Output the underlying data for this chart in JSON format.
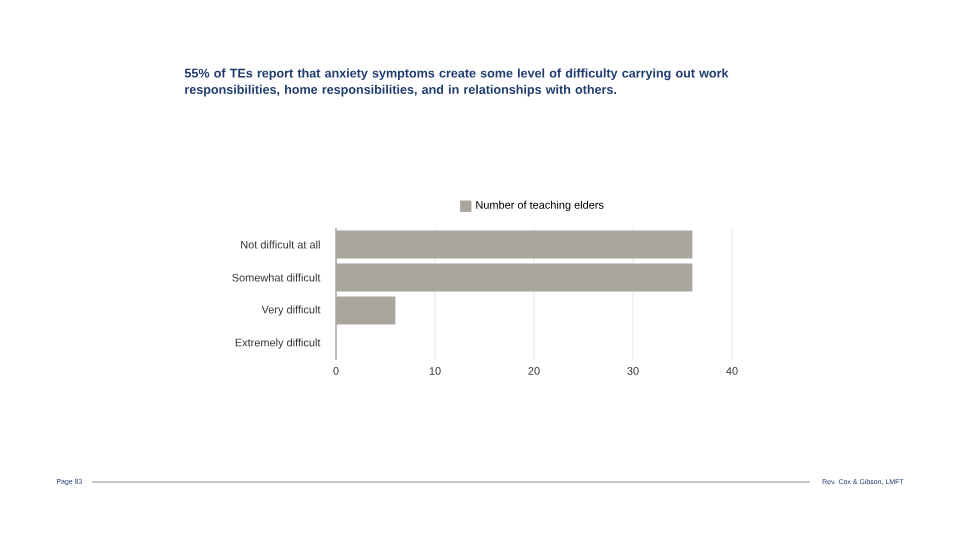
{
  "chart_data": {
    "type": "bar",
    "orientation": "horizontal",
    "title": "55% of TEs report that anxiety symptoms create some level of difficulty carrying out work responsibilities, home responsibilities, and in relationships with others.",
    "categories": [
      "Not difficult at all",
      "Somewhat difficult",
      "Very difficult",
      "Extremely difficult"
    ],
    "series": [
      {
        "name": "Number of teaching elders",
        "color": "#aaa59d",
        "values": [
          36,
          36,
          6,
          0
        ]
      }
    ],
    "xlim": [
      0,
      40
    ],
    "xticks": [
      0,
      10,
      20,
      30,
      40
    ],
    "grid": "x",
    "legend": "top",
    "annotations": [
      "Page 83",
      "Rev. Cox & Gibson, LMFT"
    ]
  }
}
